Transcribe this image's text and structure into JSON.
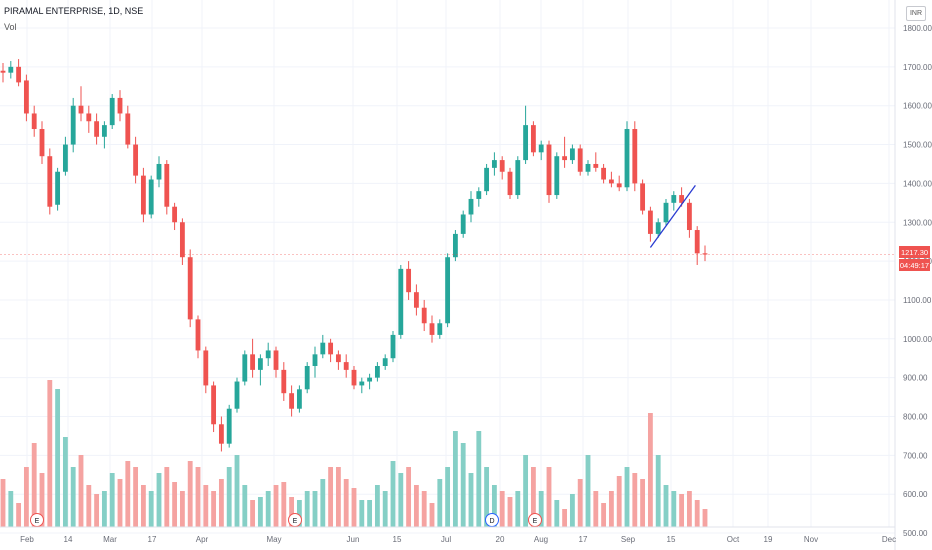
{
  "header": {
    "symbol": "PIRAMAL ENTERPRISE, 1D, NSE",
    "volume_label": "Vol",
    "currency": "INR"
  },
  "colors": {
    "up": "#26a69a",
    "down": "#ef5350",
    "up_volume": "#85cfc6",
    "down_volume": "#f5a3a1",
    "trendline": "#2a3bd1",
    "last_price_line": "#ef5350",
    "grid": "#f0f3fa"
  },
  "price_tag": {
    "last_price": "1217.30",
    "countdown": "04:49:17"
  },
  "event_markers": [
    {
      "label": "E",
      "x_date": "Feb 10"
    },
    {
      "label": "E",
      "x_date": "May 12"
    },
    {
      "label": "D",
      "x_date": "Jul 20"
    },
    {
      "label": "E",
      "x_date": "Jul 31"
    }
  ],
  "chart_data": {
    "type": "candlestick",
    "y_axis": {
      "ticks": [
        "1800.00",
        "1700.00",
        "1600.00",
        "1500.00",
        "1400.00",
        "1300.00",
        "1200.00",
        "1100.00",
        "1000.00",
        "900.00",
        "800.00",
        "700.00",
        "600.00",
        "500.00"
      ],
      "range": [
        490,
        1840
      ],
      "grid": true
    },
    "x_axis": {
      "tick_labels": [
        "Feb",
        "14",
        "Mar",
        "17",
        "Apr",
        "May",
        "Jun",
        "15",
        "Jul",
        "20",
        "Aug",
        "17",
        "Sep",
        "15",
        "Oct",
        "19",
        "Nov",
        "Dec"
      ],
      "grid": true
    },
    "series": [
      {
        "values": [
          [
            1690,
            1710,
            1660,
            1685
          ],
          [
            1685,
            1715,
            1670,
            1700
          ],
          [
            1700,
            1720,
            1650,
            1660
          ],
          [
            1665,
            1680,
            1560,
            1580
          ],
          [
            1580,
            1600,
            1520,
            1540
          ],
          [
            1540,
            1560,
            1450,
            1470
          ],
          [
            1470,
            1490,
            1320,
            1340
          ],
          [
            1345,
            1440,
            1330,
            1430
          ],
          [
            1430,
            1520,
            1420,
            1500
          ],
          [
            1500,
            1620,
            1480,
            1600
          ],
          [
            1600,
            1650,
            1560,
            1580
          ],
          [
            1580,
            1600,
            1530,
            1560
          ],
          [
            1560,
            1580,
            1500,
            1520
          ],
          [
            1520,
            1560,
            1490,
            1550
          ],
          [
            1550,
            1630,
            1540,
            1620
          ],
          [
            1620,
            1640,
            1560,
            1580
          ],
          [
            1580,
            1600,
            1490,
            1500
          ],
          [
            1500,
            1520,
            1400,
            1420
          ],
          [
            1420,
            1440,
            1300,
            1320
          ],
          [
            1320,
            1420,
            1310,
            1410
          ],
          [
            1410,
            1470,
            1390,
            1450
          ],
          [
            1450,
            1460,
            1320,
            1340
          ],
          [
            1340,
            1350,
            1280,
            1300
          ],
          [
            1300,
            1310,
            1190,
            1210
          ],
          [
            1210,
            1230,
            1030,
            1050
          ],
          [
            1050,
            1060,
            950,
            970
          ],
          [
            970,
            980,
            860,
            880
          ],
          [
            880,
            890,
            760,
            780
          ],
          [
            780,
            800,
            710,
            730
          ],
          [
            730,
            830,
            720,
            820
          ],
          [
            820,
            900,
            810,
            890
          ],
          [
            890,
            970,
            880,
            960
          ],
          [
            960,
            1000,
            900,
            920
          ],
          [
            920,
            960,
            880,
            950
          ],
          [
            950,
            990,
            930,
            970
          ],
          [
            970,
            980,
            900,
            920
          ],
          [
            920,
            940,
            840,
            860
          ],
          [
            860,
            880,
            800,
            820
          ],
          [
            820,
            880,
            810,
            870
          ],
          [
            870,
            940,
            860,
            930
          ],
          [
            930,
            980,
            900,
            960
          ],
          [
            960,
            1010,
            950,
            990
          ],
          [
            990,
            1000,
            940,
            960
          ],
          [
            960,
            970,
            920,
            940
          ],
          [
            940,
            960,
            900,
            920
          ],
          [
            920,
            930,
            870,
            880
          ],
          [
            880,
            900,
            860,
            890
          ],
          [
            890,
            910,
            870,
            900
          ],
          [
            900,
            940,
            890,
            930
          ],
          [
            930,
            960,
            920,
            950
          ],
          [
            950,
            1020,
            940,
            1010
          ],
          [
            1010,
            1190,
            1000,
            1180
          ],
          [
            1180,
            1200,
            1100,
            1120
          ],
          [
            1120,
            1140,
            1060,
            1080
          ],
          [
            1080,
            1100,
            1020,
            1040
          ],
          [
            1040,
            1060,
            990,
            1010
          ],
          [
            1010,
            1050,
            1000,
            1040
          ],
          [
            1040,
            1220,
            1030,
            1210
          ],
          [
            1210,
            1280,
            1200,
            1270
          ],
          [
            1270,
            1330,
            1260,
            1320
          ],
          [
            1320,
            1380,
            1300,
            1360
          ],
          [
            1360,
            1390,
            1340,
            1380
          ],
          [
            1380,
            1450,
            1370,
            1440
          ],
          [
            1440,
            1480,
            1420,
            1460
          ],
          [
            1460,
            1470,
            1410,
            1430
          ],
          [
            1430,
            1440,
            1360,
            1370
          ],
          [
            1370,
            1470,
            1360,
            1460
          ],
          [
            1460,
            1600,
            1450,
            1550
          ],
          [
            1550,
            1560,
            1470,
            1480
          ],
          [
            1480,
            1510,
            1460,
            1500
          ],
          [
            1500,
            1510,
            1350,
            1370
          ],
          [
            1370,
            1480,
            1360,
            1470
          ],
          [
            1470,
            1520,
            1440,
            1460
          ],
          [
            1460,
            1500,
            1450,
            1490
          ],
          [
            1490,
            1500,
            1420,
            1430
          ],
          [
            1430,
            1460,
            1420,
            1450
          ],
          [
            1450,
            1480,
            1430,
            1440
          ],
          [
            1440,
            1450,
            1400,
            1410
          ],
          [
            1410,
            1430,
            1390,
            1400
          ],
          [
            1400,
            1420,
            1380,
            1390
          ],
          [
            1390,
            1560,
            1380,
            1540
          ],
          [
            1540,
            1560,
            1380,
            1400
          ],
          [
            1400,
            1410,
            1320,
            1330
          ],
          [
            1330,
            1340,
            1250,
            1270
          ],
          [
            1270,
            1310,
            1260,
            1300
          ],
          [
            1300,
            1360,
            1290,
            1350
          ],
          [
            1350,
            1380,
            1330,
            1370
          ],
          [
            1370,
            1390,
            1340,
            1350
          ],
          [
            1350,
            1360,
            1260,
            1280
          ],
          [
            1280,
            1290,
            1190,
            1220
          ],
          [
            1220,
            1240,
            1200,
            1217
          ]
        ]
      },
      {
        "name": "Vol",
        "values": [
          580,
          560,
          540,
          600,
          640,
          590,
          745,
          730,
          650,
          600,
          620,
          570,
          555,
          560,
          590,
          580,
          610,
          600,
          570,
          560,
          590,
          600,
          575,
          560,
          610,
          600,
          570,
          560,
          580,
          600,
          620,
          570,
          545,
          550,
          560,
          570,
          575,
          550,
          545,
          560,
          560,
          580,
          600,
          600,
          580,
          565,
          545,
          545,
          570,
          560,
          610,
          590,
          600,
          570,
          560,
          540,
          580,
          600,
          660,
          640,
          590,
          660,
          600,
          570,
          560,
          550,
          560,
          620,
          600,
          560,
          600,
          545,
          530,
          555,
          580,
          620,
          560,
          540,
          560,
          585,
          600,
          590,
          580,
          690,
          620,
          570,
          560,
          555,
          560,
          545,
          530
        ]
      }
    ],
    "annotations": [
      "trendline",
      "last price line"
    ]
  }
}
